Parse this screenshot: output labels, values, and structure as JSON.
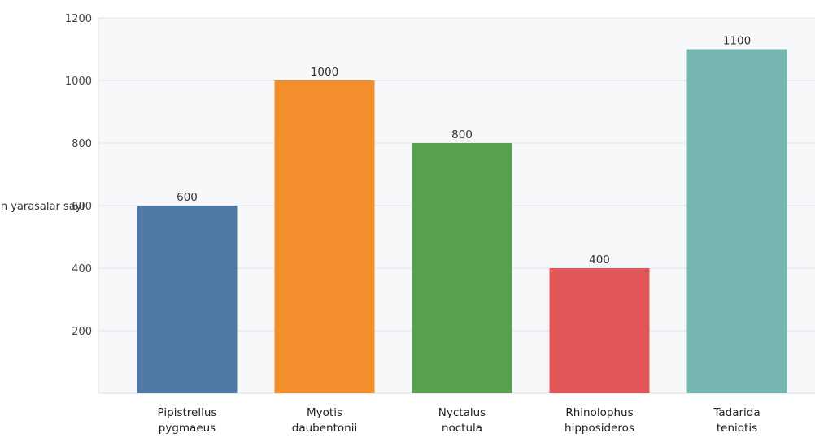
{
  "chart_data": {
    "type": "bar",
    "categories": [
      [
        "Pipistrellus",
        "pygmaeus"
      ],
      [
        "Myotis",
        "daubentonii"
      ],
      [
        "Nyctalus",
        "noctula"
      ],
      [
        "Rhinolophus",
        "hipposideros"
      ],
      [
        "Tadarida",
        "teniotis"
      ]
    ],
    "values": [
      600,
      1000,
      800,
      400,
      1100
    ],
    "colors": [
      "#4e79a7",
      "#f28e2b",
      "#59a14f",
      "#e15759",
      "#76b7b2"
    ],
    "ylabel": "Qaranlıqda uçan yarasalar sayı",
    "yticks": [
      200,
      400,
      600,
      800,
      1000,
      1200
    ],
    "ylim": [
      0,
      1200
    ],
    "grid": true,
    "data_labels": true
  }
}
